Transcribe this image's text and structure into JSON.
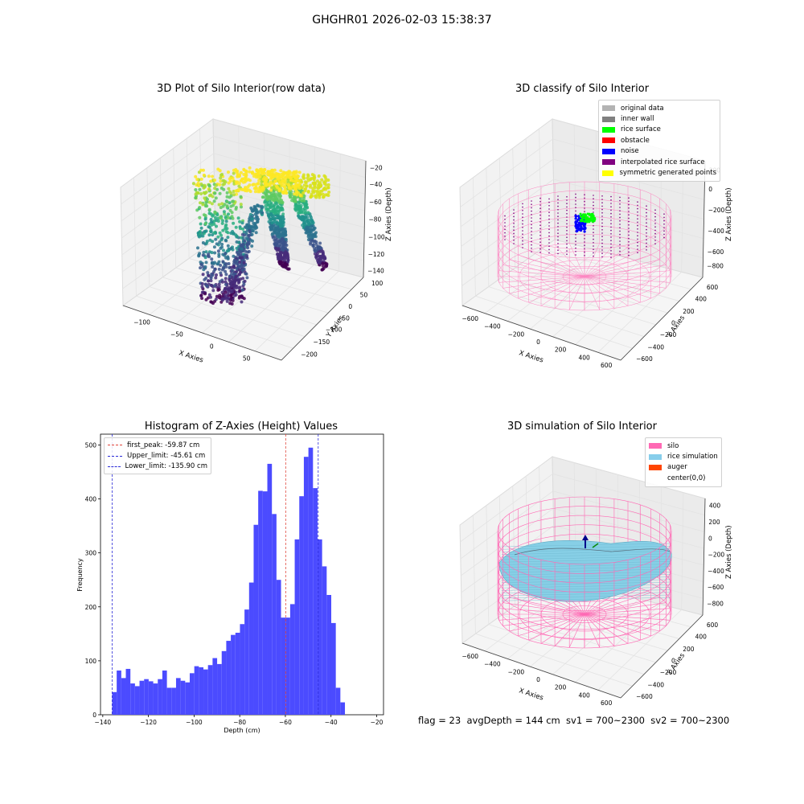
{
  "figure": {
    "title": "GHGHR01 2026-02-03 15:38:37"
  },
  "status_line": "flag = 23  avgDepth = 144 cm  sv1 = 700~2300  sv2 = 700~2300",
  "colors": {
    "histogram_bar": "#4b4bff",
    "first_peak_line": "#e0453a",
    "limit_line": "#2b2bd8",
    "silo_wire": "#ff69b4",
    "rice_surface": "#87cfe6"
  },
  "chart_data": [
    {
      "type": "scatter",
      "title": "3D Plot of Silo Interior(row data)",
      "xlabel": "X Axies",
      "ylabel": "Y Axies",
      "zlabel": "Z Axies (Depth)",
      "x_ticks": [
        "−100",
        "−50",
        "0",
        "50"
      ],
      "y_ticks": [
        "100",
        "50",
        "0",
        "−50",
        "−100",
        "−150",
        "−200"
      ],
      "z_ticks": [
        "−20",
        "−40",
        "−60",
        "−80",
        "−100",
        "−120",
        "−140"
      ],
      "colormap": "viridis"
    },
    {
      "type": "scatter",
      "title": "3D classify of Silo Interior",
      "xlabel": "X Axies",
      "ylabel": "Y Axies",
      "zlabel": "Z Axies (Depth)",
      "x_ticks": [
        "−600",
        "−400",
        "−200",
        "0",
        "200",
        "400",
        "600"
      ],
      "y_ticks": [
        "600",
        "400",
        "200",
        "0",
        "−200",
        "−400",
        "−600"
      ],
      "z_ticks": [
        "200",
        "0",
        "−200",
        "−400",
        "−600",
        "−800"
      ],
      "legend": [
        {
          "label": "original data",
          "color": "#b3b3b3"
        },
        {
          "label": "inner wall",
          "color": "#808080"
        },
        {
          "label": "rice surface",
          "color": "#00ff00"
        },
        {
          "label": "obstacle",
          "color": "#ff0000"
        },
        {
          "label": "noise",
          "color": "#0000ff"
        },
        {
          "label": "interpolated rice surface",
          "color": "#800080"
        },
        {
          "label": "symmetric generated points",
          "color": "#ffff00"
        }
      ]
    },
    {
      "type": "bar",
      "title": "Histogram of Z-Axies (Height) Values",
      "xlabel": "Depth (cm)",
      "ylabel": "Frequency",
      "xlim": [
        -141,
        -17
      ],
      "ylim": [
        0,
        520
      ],
      "x_ticks": [
        "−140",
        "−120",
        "−100",
        "−80",
        "−60",
        "−40",
        "−20"
      ],
      "y_ticks": [
        "0",
        "100",
        "200",
        "300",
        "400",
        "500"
      ],
      "bin_start": -135.9,
      "bin_width": 2.0,
      "values": [
        42,
        82,
        68,
        85,
        58,
        53,
        63,
        66,
        62,
        58,
        66,
        82,
        50,
        50,
        68,
        63,
        60,
        77,
        90,
        88,
        84,
        92,
        105,
        94,
        118,
        137,
        148,
        152,
        168,
        195,
        245,
        352,
        415,
        414,
        465,
        372,
        250,
        180,
        180,
        205,
        325,
        405,
        478,
        495,
        420,
        325,
        275,
        222,
        170,
        50,
        23
      ],
      "vlines": [
        {
          "label": "first_peak: -59.87 cm",
          "x": -59.87,
          "color": "#e0453a"
        },
        {
          "label": "Upper_limit: -45.61 cm",
          "x": -45.61,
          "color": "#2b2bd8"
        },
        {
          "label": "Lower_limit: -135.90 cm",
          "x": -135.9,
          "color": "#2b2bd8"
        }
      ]
    },
    {
      "type": "area",
      "title": "3D simulation of Silo Interior",
      "xlabel": "X Axies",
      "ylabel": "Y Axies",
      "zlabel": "Z Axies (Depth)",
      "x_ticks": [
        "−600",
        "−400",
        "−200",
        "0",
        "200",
        "400",
        "600"
      ],
      "y_ticks": [
        "600",
        "400",
        "200",
        "0",
        "−200",
        "−400",
        "−600"
      ],
      "z_ticks": [
        "400",
        "200",
        "0",
        "−200",
        "−400",
        "−600",
        "−800"
      ],
      "legend": [
        {
          "label": "silo",
          "color": "#ff69b4"
        },
        {
          "label": "rice simulation",
          "color": "#87ceeb"
        },
        {
          "label": "auger",
          "color": "#ff4500"
        },
        {
          "label": "center(0,0)",
          "color": ""
        }
      ]
    }
  ]
}
